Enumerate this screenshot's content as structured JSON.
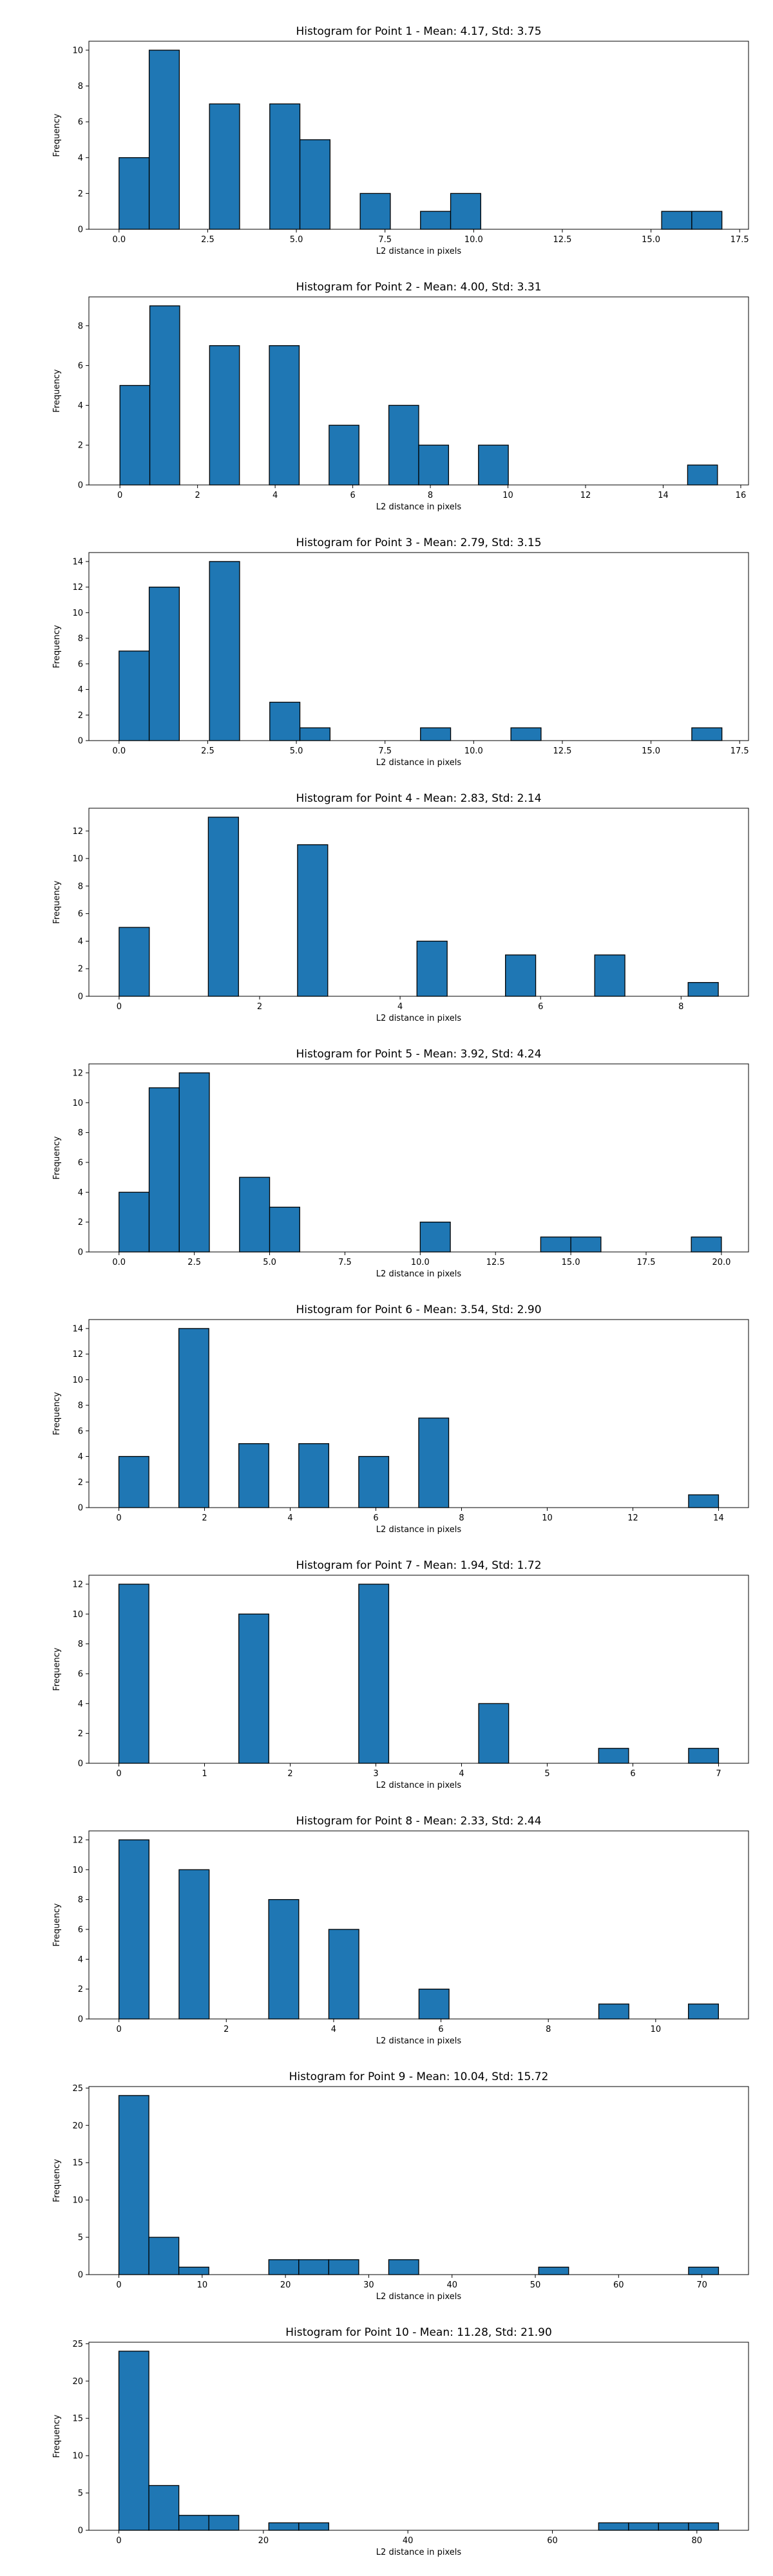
{
  "chart_data": [
    {
      "type": "bar",
      "title": "Histogram for Point 1 - Mean: 4.17, Std: 3.75",
      "xlabel": "L2 distance in pixels",
      "ylabel": "Frequency",
      "xlim": [
        -0.85,
        17.75
      ],
      "ylim": [
        0,
        10.5
      ],
      "xticks": [
        0.0,
        2.5,
        5.0,
        7.5,
        10.0,
        12.5,
        15.0,
        17.5
      ],
      "xtick_labels": [
        "0.0",
        "2.5",
        "5.0",
        "7.5",
        "10.0",
        "12.5",
        "15.0",
        "17.5"
      ],
      "yticks": [
        0,
        2,
        4,
        6,
        8,
        10
      ],
      "bars": [
        {
          "x0": 0.0,
          "x1": 0.85,
          "value": 4
        },
        {
          "x0": 0.85,
          "x1": 1.7,
          "value": 10
        },
        {
          "x0": 2.55,
          "x1": 3.4,
          "value": 7
        },
        {
          "x0": 4.25,
          "x1": 5.1,
          "value": 7
        },
        {
          "x0": 5.1,
          "x1": 5.95,
          "value": 5
        },
        {
          "x0": 6.8,
          "x1": 7.65,
          "value": 2
        },
        {
          "x0": 8.5,
          "x1": 9.35,
          "value": 1
        },
        {
          "x0": 9.35,
          "x1": 10.2,
          "value": 2
        },
        {
          "x0": 15.3,
          "x1": 16.15,
          "value": 1
        },
        {
          "x0": 16.15,
          "x1": 17.0,
          "value": 1
        }
      ]
    },
    {
      "type": "bar",
      "title": "Histogram for Point 2 - Mean: 4.00, Std: 3.31",
      "xlabel": "L2 distance in pixels",
      "ylabel": "Frequency",
      "xlim": [
        -0.8,
        16.2
      ],
      "ylim": [
        0,
        9.45
      ],
      "xticks": [
        0,
        2,
        4,
        6,
        8,
        10,
        12,
        14,
        16
      ],
      "xtick_labels": [
        "0",
        "2",
        "4",
        "6",
        "8",
        "10",
        "12",
        "14",
        "16"
      ],
      "yticks": [
        0,
        2,
        4,
        6,
        8
      ],
      "bars": [
        {
          "x0": 0.0,
          "x1": 0.77,
          "value": 5
        },
        {
          "x0": 0.77,
          "x1": 1.54,
          "value": 9
        },
        {
          "x0": 2.31,
          "x1": 3.08,
          "value": 7
        },
        {
          "x0": 3.85,
          "x1": 4.62,
          "value": 7
        },
        {
          "x0": 5.39,
          "x1": 6.16,
          "value": 3
        },
        {
          "x0": 6.93,
          "x1": 7.7,
          "value": 4
        },
        {
          "x0": 7.7,
          "x1": 8.47,
          "value": 2
        },
        {
          "x0": 9.24,
          "x1": 10.01,
          "value": 2
        },
        {
          "x0": 14.63,
          "x1": 15.4,
          "value": 1
        }
      ]
    },
    {
      "type": "bar",
      "title": "Histogram for Point 3 - Mean: 2.79, Std: 3.15",
      "xlabel": "L2 distance in pixels",
      "ylabel": "Frequency",
      "xlim": [
        -0.85,
        17.75
      ],
      "ylim": [
        0,
        14.7
      ],
      "xticks": [
        0.0,
        2.5,
        5.0,
        7.5,
        10.0,
        12.5,
        15.0,
        17.5
      ],
      "xtick_labels": [
        "0.0",
        "2.5",
        "5.0",
        "7.5",
        "10.0",
        "12.5",
        "15.0",
        "17.5"
      ],
      "yticks": [
        0,
        2,
        4,
        6,
        8,
        10,
        12,
        14
      ],
      "bars": [
        {
          "x0": 0.0,
          "x1": 0.85,
          "value": 7
        },
        {
          "x0": 0.85,
          "x1": 1.7,
          "value": 12
        },
        {
          "x0": 2.55,
          "x1": 3.4,
          "value": 14
        },
        {
          "x0": 4.25,
          "x1": 5.1,
          "value": 3
        },
        {
          "x0": 5.1,
          "x1": 5.95,
          "value": 1
        },
        {
          "x0": 8.5,
          "x1": 9.35,
          "value": 1
        },
        {
          "x0": 11.05,
          "x1": 11.9,
          "value": 1
        },
        {
          "x0": 16.15,
          "x1": 17.0,
          "value": 1
        }
      ]
    },
    {
      "type": "bar",
      "title": "Histogram for Point 4 - Mean: 2.83, Std: 2.14",
      "xlabel": "L2 distance in pixels",
      "ylabel": "Frequency",
      "xlim": [
        -0.43,
        8.96
      ],
      "ylim": [
        0,
        13.65
      ],
      "xticks": [
        0,
        2,
        4,
        6,
        8
      ],
      "xtick_labels": [
        "0",
        "2",
        "4",
        "6",
        "8"
      ],
      "yticks": [
        0,
        2,
        4,
        6,
        8,
        10,
        12
      ],
      "bars": [
        {
          "x0": 0.0,
          "x1": 0.43,
          "value": 5
        },
        {
          "x0": 1.27,
          "x1": 1.7,
          "value": 13
        },
        {
          "x0": 2.54,
          "x1": 2.97,
          "value": 11
        },
        {
          "x0": 4.24,
          "x1": 4.67,
          "value": 4
        },
        {
          "x0": 5.5,
          "x1": 5.93,
          "value": 3
        },
        {
          "x0": 6.77,
          "x1": 7.2,
          "value": 3
        },
        {
          "x0": 8.1,
          "x1": 8.53,
          "value": 1
        }
      ]
    },
    {
      "type": "bar",
      "title": "Histogram for Point 5 - Mean: 3.92, Std: 4.24",
      "xlabel": "L2 distance in pixels",
      "ylabel": "Frequency",
      "xlim": [
        -1.0,
        20.9
      ],
      "ylim": [
        0,
        12.6
      ],
      "xticks": [
        0.0,
        2.5,
        5.0,
        7.5,
        10.0,
        12.5,
        15.0,
        17.5,
        20.0
      ],
      "xtick_labels": [
        "0.0",
        "2.5",
        "5.0",
        "7.5",
        "10.0",
        "12.5",
        "15.0",
        "17.5",
        "20.0"
      ],
      "yticks": [
        0,
        2,
        4,
        6,
        8,
        10,
        12
      ],
      "bars": [
        {
          "x0": 0.0,
          "x1": 1.0,
          "value": 4
        },
        {
          "x0": 1.0,
          "x1": 2.0,
          "value": 11
        },
        {
          "x0": 2.0,
          "x1": 3.0,
          "value": 12
        },
        {
          "x0": 4.0,
          "x1": 5.0,
          "value": 5
        },
        {
          "x0": 5.0,
          "x1": 6.0,
          "value": 3
        },
        {
          "x0": 10.0,
          "x1": 11.0,
          "value": 2
        },
        {
          "x0": 14.0,
          "x1": 15.0,
          "value": 1
        },
        {
          "x0": 15.0,
          "x1": 16.0,
          "value": 1
        },
        {
          "x0": 19.0,
          "x1": 20.0,
          "value": 1
        }
      ]
    },
    {
      "type": "bar",
      "title": "Histogram for Point 6 - Mean: 3.54, Std: 2.90",
      "xlabel": "L2 distance in pixels",
      "ylabel": "Frequency",
      "xlim": [
        -0.7,
        14.7
      ],
      "ylim": [
        0,
        14.7
      ],
      "xticks": [
        0,
        2,
        4,
        6,
        8,
        10,
        12,
        14
      ],
      "xtick_labels": [
        "0",
        "2",
        "4",
        "6",
        "8",
        "10",
        "12",
        "14"
      ],
      "yticks": [
        0,
        2,
        4,
        6,
        8,
        10,
        12,
        14
      ],
      "bars": [
        {
          "x0": 0.0,
          "x1": 1.0,
          "value": 4
        },
        {
          "x0": 2.0,
          "x1": 3.0,
          "value": 14
        },
        {
          "x0": 4.0,
          "x1": 5.0,
          "value": 5
        },
        {
          "x0": 6.0,
          "x1": 7.0,
          "value": 5
        },
        {
          "x0": 8.0,
          "x1": 9.0,
          "value": 4
        },
        {
          "x0": 10.0,
          "x1": 11.0,
          "value": 7
        },
        {
          "x0": 19.0,
          "x1": 20.0,
          "value": 1
        }
      ],
      "bin_scale": 0.7
    },
    {
      "type": "bar",
      "title": "Histogram for Point 7 - Mean: 1.94, Std: 1.72",
      "xlabel": "L2 distance in pixels",
      "ylabel": "Frequency",
      "xlim": [
        -0.35,
        7.35
      ],
      "ylim": [
        0,
        12.6
      ],
      "xticks": [
        0,
        1,
        2,
        3,
        4,
        5,
        6,
        7
      ],
      "xtick_labels": [
        "0",
        "1",
        "2",
        "3",
        "4",
        "5",
        "6",
        "7"
      ],
      "yticks": [
        0,
        2,
        4,
        6,
        8,
        10,
        12
      ],
      "bars": [
        {
          "x0": 0.0,
          "x1": 0.35,
          "value": 12
        },
        {
          "x0": 1.4,
          "x1": 1.75,
          "value": 10
        },
        {
          "x0": 2.8,
          "x1": 3.15,
          "value": 12
        },
        {
          "x0": 4.2,
          "x1": 4.55,
          "value": 4
        },
        {
          "x0": 5.6,
          "x1": 5.95,
          "value": 1
        },
        {
          "x0": 6.65,
          "x1": 7.0,
          "value": 1
        }
      ]
    },
    {
      "type": "bar",
      "title": "Histogram for Point 8 - Mean: 2.33, Std: 2.44",
      "xlabel": "L2 distance in pixels",
      "ylabel": "Frequency",
      "xlim": [
        -0.56,
        11.73
      ],
      "ylim": [
        0,
        12.6
      ],
      "xticks": [
        0,
        2,
        4,
        6,
        8,
        10
      ],
      "xtick_labels": [
        "0",
        "2",
        "4",
        "6",
        "8",
        "10"
      ],
      "yticks": [
        0,
        2,
        4,
        6,
        8,
        10,
        12
      ],
      "bars": [
        {
          "x0": 0.0,
          "x1": 0.56,
          "value": 12
        },
        {
          "x0": 1.12,
          "x1": 1.68,
          "value": 10
        },
        {
          "x0": 2.79,
          "x1": 3.35,
          "value": 8
        },
        {
          "x0": 3.91,
          "x1": 4.47,
          "value": 6
        },
        {
          "x0": 5.59,
          "x1": 6.15,
          "value": 2
        },
        {
          "x0": 8.94,
          "x1": 9.5,
          "value": 1
        },
        {
          "x0": 10.61,
          "x1": 11.17,
          "value": 1
        }
      ]
    },
    {
      "type": "bar",
      "title": "Histogram for Point 9 - Mean: 10.04, Std: 15.72",
      "xlabel": "L2 distance in pixels",
      "ylabel": "Frequency",
      "xlim": [
        -3.6,
        75.6
      ],
      "ylim": [
        0,
        25.2
      ],
      "xticks": [
        0,
        10,
        20,
        30,
        40,
        50,
        60,
        70
      ],
      "xtick_labels": [
        "0",
        "10",
        "20",
        "30",
        "40",
        "50",
        "60",
        "70"
      ],
      "yticks": [
        0,
        5,
        10,
        15,
        20,
        25
      ],
      "bars": [
        {
          "x0": 0.0,
          "x1": 3.6,
          "value": 24
        },
        {
          "x0": 3.6,
          "x1": 7.2,
          "value": 5
        },
        {
          "x0": 7.2,
          "x1": 10.8,
          "value": 1
        },
        {
          "x0": 18.0,
          "x1": 21.6,
          "value": 2
        },
        {
          "x0": 21.6,
          "x1": 25.2,
          "value": 2
        },
        {
          "x0": 25.2,
          "x1": 28.8,
          "value": 2
        },
        {
          "x0": 32.4,
          "x1": 36.0,
          "value": 2
        },
        {
          "x0": 50.4,
          "x1": 54.0,
          "value": 1
        },
        {
          "x0": 68.4,
          "x1": 72.0,
          "value": 1
        }
      ]
    },
    {
      "type": "bar",
      "title": "Histogram for Point 10 - Mean: 11.28, Std: 21.90",
      "xlabel": "L2 distance in pixels",
      "ylabel": "Frequency",
      "xlim": [
        -4.15,
        87.15
      ],
      "ylim": [
        0,
        25.2
      ],
      "xticks": [
        0,
        20,
        40,
        60,
        80
      ],
      "xtick_labels": [
        "0",
        "20",
        "40",
        "60",
        "80"
      ],
      "yticks": [
        0,
        5,
        10,
        15,
        20,
        25
      ],
      "bars": [
        {
          "x0": 0.0,
          "x1": 4.15,
          "value": 24
        },
        {
          "x0": 4.15,
          "x1": 8.3,
          "value": 6
        },
        {
          "x0": 8.3,
          "x1": 12.45,
          "value": 2
        },
        {
          "x0": 12.45,
          "x1": 16.6,
          "value": 2
        },
        {
          "x0": 20.75,
          "x1": 24.9,
          "value": 1
        },
        {
          "x0": 24.9,
          "x1": 29.05,
          "value": 1
        },
        {
          "x0": 66.4,
          "x1": 70.55,
          "value": 1
        },
        {
          "x0": 70.55,
          "x1": 74.7,
          "value": 1
        },
        {
          "x0": 74.7,
          "x1": 78.85,
          "value": 1
        },
        {
          "x0": 78.85,
          "x1": 83.0,
          "value": 1
        }
      ]
    }
  ],
  "colors": {
    "bar_fill": "#1f77b4",
    "bar_edge": "#000000",
    "axes": "#000000"
  }
}
